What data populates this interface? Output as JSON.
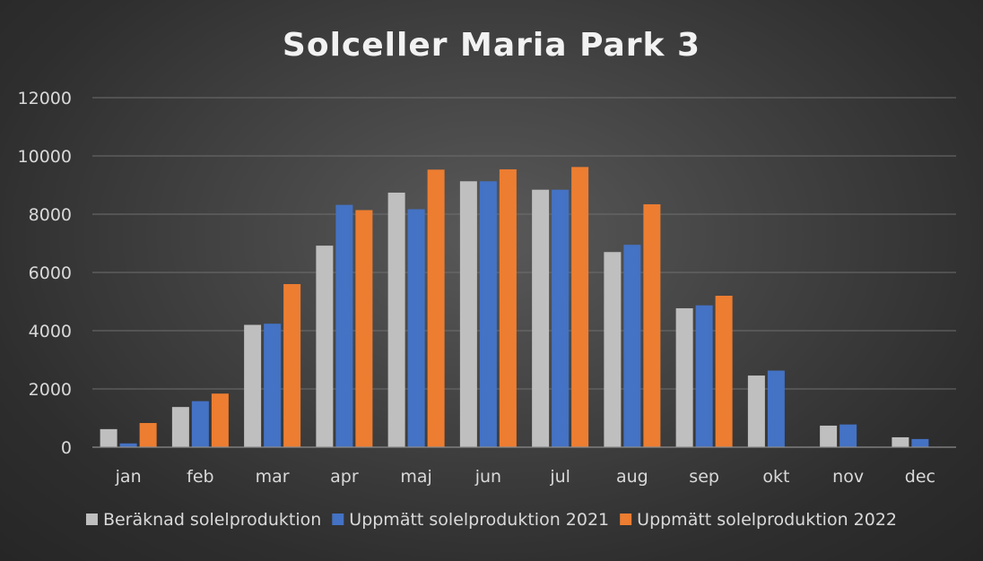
{
  "chart_data": {
    "type": "bar",
    "title": "Solceller Maria Park 3",
    "xlabel": "",
    "ylabel": "",
    "categories": [
      "jan",
      "feb",
      "mar",
      "apr",
      "maj",
      "jun",
      "jul",
      "aug",
      "sep",
      "okt",
      "nov",
      "dec"
    ],
    "series": [
      {
        "name": "Beräknad solelproduktion",
        "color": "#bfbfbf",
        "values": [
          620,
          1380,
          4200,
          6920,
          8740,
          9130,
          8840,
          6700,
          4770,
          2460,
          740,
          340
        ]
      },
      {
        "name": "Uppmätt solelproduktion 2021",
        "color": "#4472c4",
        "values": [
          130,
          1580,
          4240,
          8320,
          8170,
          9130,
          8840,
          6950,
          4870,
          2630,
          780,
          280
        ]
      },
      {
        "name": "Uppmätt solelproduktion 2022",
        "color": "#ed7d31",
        "values": [
          830,
          1840,
          5600,
          8140,
          9530,
          9540,
          9620,
          8340,
          5200,
          null,
          null,
          null
        ]
      }
    ],
    "ylim": [
      0,
      12000
    ],
    "yticks": [
      0,
      2000,
      4000,
      6000,
      8000,
      10000,
      12000
    ],
    "grid": true,
    "legend_position": "bottom"
  }
}
